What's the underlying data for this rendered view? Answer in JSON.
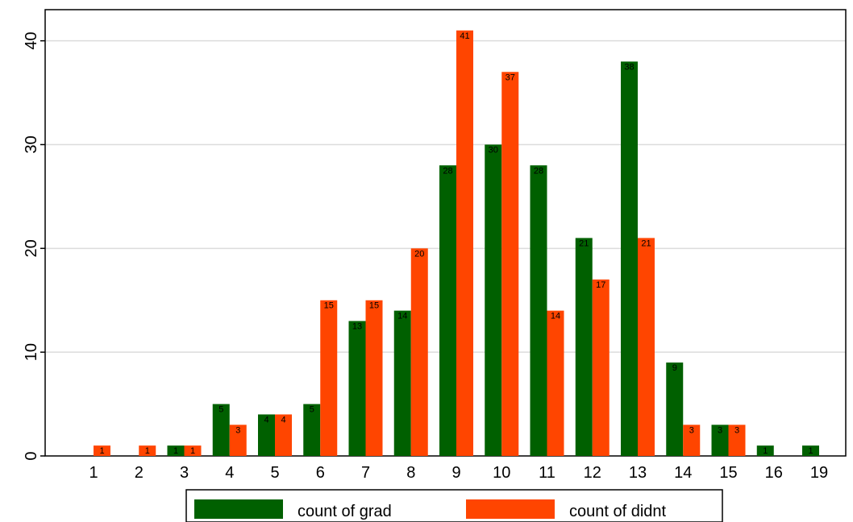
{
  "chart_data": {
    "type": "bar",
    "categories": [
      "1",
      "2",
      "3",
      "4",
      "5",
      "6",
      "7",
      "8",
      "9",
      "10",
      "11",
      "12",
      "13",
      "14",
      "15",
      "16",
      "19"
    ],
    "series": [
      {
        "name": "count of grad",
        "color": "#006000",
        "values": [
          0,
          0,
          1,
          5,
          4,
          5,
          13,
          14,
          28,
          30,
          28,
          21,
          38,
          9,
          3,
          1,
          1
        ]
      },
      {
        "name": "count of didnt",
        "color": "#ff4500",
        "values": [
          1,
          1,
          1,
          3,
          4,
          15,
          15,
          20,
          41,
          37,
          14,
          17,
          21,
          3,
          3,
          0,
          0
        ]
      }
    ],
    "ylim": [
      0,
      43
    ],
    "yticks": [
      "0",
      "10",
      "20",
      "30",
      "40"
    ],
    "grid": true,
    "legend_position": "bottom"
  }
}
